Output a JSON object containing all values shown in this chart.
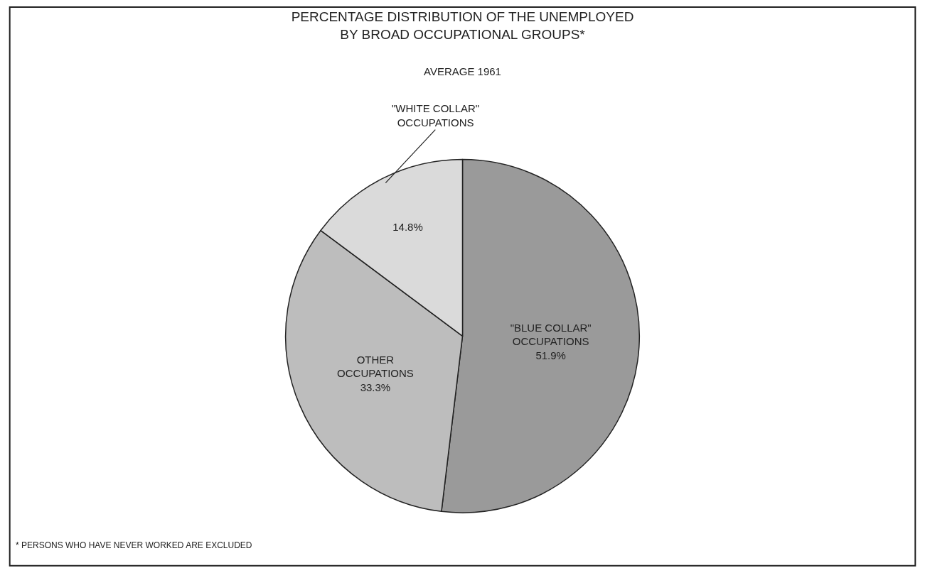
{
  "chart_data": {
    "type": "pie",
    "title": "PERCENTAGE DISTRIBUTION OF THE UNEMPLOYED\nBY BROAD OCCUPATIONAL GROUPS*",
    "subtitle": "AVERAGE 1961",
    "categories": [
      "\"BLUE COLLAR\"\nOCCUPATIONS",
      "OTHER\nOCCUPATIONS",
      "\"WHITE COLLAR\"\nOCCUPATIONS"
    ],
    "values": [
      51.9,
      33.3,
      14.8
    ],
    "value_labels": [
      "51.9%",
      "33.3%",
      "14.8%"
    ],
    "colors": [
      "#9a9a9a",
      "#bdbdbd",
      "#dadada"
    ],
    "annotations": [
      "* PERSONS WHO HAVE NEVER WORKED ARE EXCLUDED"
    ],
    "legend": false
  }
}
